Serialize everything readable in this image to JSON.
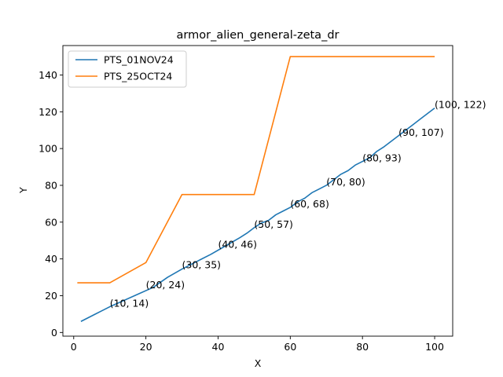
{
  "chart_data": {
    "type": "line",
    "title": "armor_alien_general-zeta_dr",
    "xlabel": "X",
    "ylabel": "Y",
    "xlim": [
      -3,
      105
    ],
    "ylim": [
      -2,
      156
    ],
    "xticks": [
      0,
      20,
      40,
      60,
      80,
      100
    ],
    "yticks": [
      0,
      20,
      40,
      60,
      80,
      100,
      120,
      140
    ],
    "grid": false,
    "legend_position": "top-left",
    "series": [
      {
        "name": "PTS_01NOV24",
        "color": "#1f77b4",
        "x": [
          2,
          6,
          10,
          14,
          18,
          22,
          26,
          30,
          34,
          38,
          42,
          46,
          48,
          50,
          52,
          54,
          56,
          58,
          60,
          62,
          64,
          66,
          68,
          70,
          72,
          74,
          76,
          78,
          80,
          82,
          84,
          86,
          88,
          90,
          92,
          94,
          96,
          98,
          100
        ],
        "y": [
          6,
          10,
          14,
          17.5,
          21,
          24.5,
          30,
          34.5,
          38.5,
          42.5,
          47,
          51.5,
          54,
          57,
          59.5,
          61,
          64,
          66,
          68,
          71,
          73,
          76,
          78,
          80,
          83,
          86,
          88,
          91,
          93,
          95,
          98.5,
          101,
          104,
          107,
          110,
          113,
          116,
          119,
          122
        ]
      },
      {
        "name": "PTS_25OCT24",
        "color": "#ff7f0e",
        "x": [
          1,
          10,
          20,
          30,
          50,
          60,
          100
        ],
        "y": [
          27,
          27,
          38,
          75,
          75,
          150,
          150
        ]
      }
    ],
    "annotations": [
      {
        "text": "(10, 14)",
        "x": 10,
        "y": 14
      },
      {
        "text": "(20, 24)",
        "x": 20,
        "y": 24
      },
      {
        "text": "(30, 35)",
        "x": 30,
        "y": 35
      },
      {
        "text": "(40, 46)",
        "x": 40,
        "y": 46
      },
      {
        "text": "(50, 57)",
        "x": 50,
        "y": 57
      },
      {
        "text": "(60, 68)",
        "x": 60,
        "y": 68
      },
      {
        "text": "(70, 80)",
        "x": 70,
        "y": 80
      },
      {
        "text": "(80, 93)",
        "x": 80,
        "y": 93
      },
      {
        "text": "(90, 107)",
        "x": 90,
        "y": 107
      },
      {
        "text": "(100, 122)",
        "x": 100,
        "y": 122
      }
    ]
  }
}
